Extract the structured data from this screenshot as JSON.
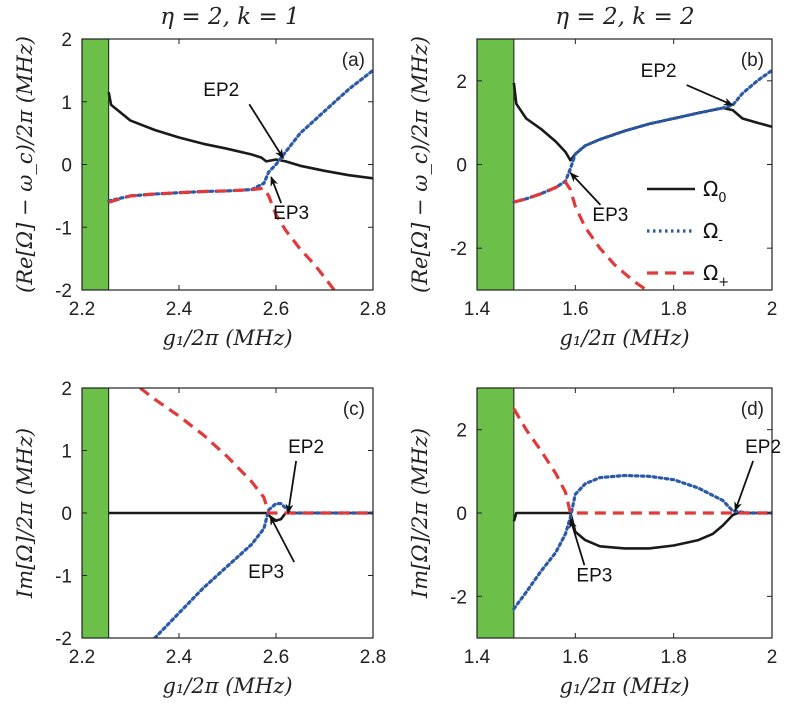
{
  "colors": {
    "omega0": "#1a1a1a",
    "omega_minus": "#2c5aa8",
    "omega_plus": "#e03a3a",
    "shade": "#6cc04a",
    "shade_edge": "#1a1a1a",
    "axis": "#222222"
  },
  "column_titles": [
    "η = 2, k = 1",
    "η = 2, k = 2"
  ],
  "legend": {
    "placement": "right-middle of panel (b)",
    "entries": [
      {
        "symbol": "Ω",
        "sub": "0",
        "series": "omega0"
      },
      {
        "symbol": "Ω",
        "sub": "-",
        "series": "omega_minus"
      },
      {
        "symbol": "Ω",
        "sub": "+",
        "series": "omega_plus"
      }
    ]
  },
  "chart_data": [
    {
      "id": "a",
      "type": "line",
      "panel_label": "(a)",
      "title": "η = 2, k = 1",
      "xlabel": "g₁/2π (MHz)",
      "ylabel": "(Re[Ω] − ω_c)/2π (MHz)",
      "xlim": [
        2.2,
        2.8
      ],
      "ylim": [
        -2,
        2
      ],
      "xticks": [
        2.2,
        2.4,
        2.6,
        2.8
      ],
      "yticks": [
        -2,
        -1,
        0,
        1,
        2
      ],
      "xtick_labels": [
        "2.2",
        "2.4",
        "2.6",
        "2.8"
      ],
      "ytick_labels": [
        "-2",
        "-1",
        "0",
        "1",
        "2"
      ],
      "shaded_x": [
        2.2,
        2.255
      ],
      "series": [
        {
          "name": "Ω0",
          "key": "omega0",
          "x": [
            2.255,
            2.26,
            2.3,
            2.35,
            2.4,
            2.45,
            2.5,
            2.55,
            2.57,
            2.58,
            2.6,
            2.62,
            2.65,
            2.7,
            2.75,
            2.8
          ],
          "y": [
            1.15,
            0.95,
            0.7,
            0.55,
            0.43,
            0.33,
            0.25,
            0.16,
            0.11,
            0.05,
            0.08,
            0.05,
            -0.02,
            -0.1,
            -0.17,
            -0.22
          ]
        },
        {
          "name": "Ω-",
          "key": "omega_minus",
          "x": [
            2.255,
            2.3,
            2.35,
            2.4,
            2.45,
            2.5,
            2.55,
            2.575,
            2.585,
            2.6,
            2.62,
            2.65,
            2.7,
            2.75,
            2.8
          ],
          "y": [
            -0.58,
            -0.5,
            -0.47,
            -0.45,
            -0.43,
            -0.42,
            -0.4,
            -0.3,
            -0.12,
            0.0,
            0.2,
            0.5,
            0.85,
            1.2,
            1.5
          ]
        },
        {
          "name": "Ω+",
          "key": "omega_plus",
          "x": [
            2.255,
            2.3,
            2.35,
            2.4,
            2.45,
            2.5,
            2.55,
            2.575,
            2.585,
            2.6,
            2.62,
            2.65,
            2.68,
            2.7,
            2.72
          ],
          "y": [
            -0.6,
            -0.5,
            -0.47,
            -0.45,
            -0.43,
            -0.42,
            -0.4,
            -0.38,
            -0.5,
            -0.8,
            -1.05,
            -1.35,
            -1.6,
            -1.8,
            -2.0
          ]
        }
      ],
      "annotations": [
        {
          "text": "EP2",
          "x": 2.615,
          "y": 0.1,
          "dx": -60,
          "dy": -62
        },
        {
          "text": "EP3",
          "x": 2.59,
          "y": -0.2,
          "dx": 8,
          "dy": 42
        }
      ]
    },
    {
      "id": "b",
      "type": "line",
      "panel_label": "(b)",
      "title": "η = 2, k = 2",
      "xlabel": "g₁/2π (MHz)",
      "ylabel": "(Re[Ω] − ω_c)/2π (MHz)",
      "xlim": [
        1.4,
        2.0
      ],
      "ylim": [
        -3,
        3
      ],
      "xticks": [
        1.4,
        1.6,
        1.8,
        2.0
      ],
      "yticks": [
        -2,
        0,
        2
      ],
      "xtick_labels": [
        "1.4",
        "1.6",
        "1.8",
        "2"
      ],
      "ytick_labels": [
        "-2",
        "0",
        "2"
      ],
      "shaded_x": [
        1.4,
        1.475
      ],
      "series": [
        {
          "name": "Ω0",
          "key": "omega0",
          "x": [
            1.475,
            1.48,
            1.5,
            1.53,
            1.56,
            1.58,
            1.59,
            1.6,
            1.62,
            1.65,
            1.7,
            1.75,
            1.8,
            1.85,
            1.9,
            1.92,
            1.94,
            1.97,
            2.0
          ],
          "y": [
            1.95,
            1.45,
            1.1,
            0.85,
            0.55,
            0.3,
            0.1,
            0.25,
            0.45,
            0.6,
            0.8,
            0.97,
            1.1,
            1.23,
            1.35,
            1.3,
            1.1,
            1.0,
            0.9
          ]
        },
        {
          "name": "Ω-",
          "key": "omega_minus",
          "x": [
            1.475,
            1.5,
            1.53,
            1.56,
            1.58,
            1.59,
            1.6,
            1.62,
            1.65,
            1.7,
            1.75,
            1.8,
            1.85,
            1.9,
            1.92,
            1.94,
            1.97,
            2.0
          ],
          "y": [
            -0.9,
            -0.82,
            -0.7,
            -0.55,
            -0.4,
            -0.1,
            0.25,
            0.45,
            0.6,
            0.8,
            0.97,
            1.1,
            1.23,
            1.35,
            1.42,
            1.7,
            2.0,
            2.25
          ]
        },
        {
          "name": "Ω+",
          "key": "omega_plus",
          "x": [
            1.475,
            1.5,
            1.53,
            1.56,
            1.58,
            1.59,
            1.6,
            1.62,
            1.65,
            1.68,
            1.7,
            1.72,
            1.745
          ],
          "y": [
            -0.9,
            -0.82,
            -0.7,
            -0.55,
            -0.42,
            -0.6,
            -1.0,
            -1.5,
            -2.0,
            -2.4,
            -2.6,
            -2.8,
            -3.0
          ]
        }
      ],
      "annotations": [
        {
          "text": "EP2",
          "x": 1.92,
          "y": 1.42,
          "dx": -72,
          "dy": -28
        },
        {
          "text": "EP3",
          "x": 1.59,
          "y": -0.2,
          "dx": 28,
          "dy": 48
        }
      ]
    },
    {
      "id": "c",
      "type": "line",
      "panel_label": "(c)",
      "xlabel": "g₁/2π (MHz)",
      "ylabel": "Im[Ω]/2π (MHz)",
      "xlim": [
        2.2,
        2.8
      ],
      "ylim": [
        -2,
        2
      ],
      "xticks": [
        2.2,
        2.4,
        2.6,
        2.8
      ],
      "yticks": [
        -2,
        -1,
        0,
        1,
        2
      ],
      "xtick_labels": [
        "2.2",
        "2.4",
        "2.6",
        "2.8"
      ],
      "ytick_labels": [
        "-2",
        "-1",
        "0",
        "1",
        "2"
      ],
      "shaded_x": [
        2.2,
        2.255
      ],
      "series": [
        {
          "name": "Ω0",
          "key": "omega0",
          "x": [
            2.255,
            2.58,
            2.59,
            2.6,
            2.61,
            2.62,
            2.65,
            2.8
          ],
          "y": [
            0.0,
            0.0,
            -0.07,
            -0.12,
            -0.1,
            0.0,
            0.0,
            0.0
          ]
        },
        {
          "name": "Ω-",
          "key": "omega_minus",
          "x": [
            2.35,
            2.4,
            2.45,
            2.5,
            2.55,
            2.575,
            2.585,
            2.6,
            2.61,
            2.62,
            2.63,
            2.65,
            2.7,
            2.75,
            2.8
          ],
          "y": [
            -2.0,
            -1.6,
            -1.2,
            -0.85,
            -0.5,
            -0.25,
            0.05,
            0.15,
            0.15,
            0.08,
            0.0,
            0.0,
            0.0,
            0.0,
            0.0
          ]
        },
        {
          "name": "Ω+",
          "key": "omega_plus",
          "x": [
            2.32,
            2.35,
            2.4,
            2.45,
            2.5,
            2.55,
            2.575,
            2.585,
            2.6,
            2.65,
            2.7,
            2.75,
            2.8
          ],
          "y": [
            2.0,
            1.82,
            1.55,
            1.25,
            0.9,
            0.5,
            0.25,
            0.0,
            0.0,
            0.0,
            0.0,
            0.0,
            0.0
          ]
        }
      ],
      "annotations": [
        {
          "text": "EP2",
          "x": 2.625,
          "y": 0.0,
          "dx": 6,
          "dy": -60
        },
        {
          "text": "EP3",
          "x": 2.588,
          "y": -0.05,
          "dx": -2,
          "dy": 62
        }
      ]
    },
    {
      "id": "d",
      "type": "line",
      "panel_label": "(d)",
      "xlabel": "g₁/2π (MHz)",
      "ylabel": "Im[Ω]/2π (MHz)",
      "xlim": [
        1.4,
        2.0
      ],
      "ylim": [
        -3,
        3
      ],
      "xticks": [
        1.4,
        1.6,
        1.8,
        2.0
      ],
      "yticks": [
        -2,
        0,
        2
      ],
      "xtick_labels": [
        "1.4",
        "1.6",
        "1.8",
        "2"
      ],
      "ytick_labels": [
        "-2",
        "0",
        "2"
      ],
      "shaded_x": [
        1.4,
        1.475
      ],
      "series": [
        {
          "name": "Ω0",
          "key": "omega0",
          "x": [
            1.475,
            1.48,
            1.485,
            1.59,
            1.6,
            1.62,
            1.65,
            1.7,
            1.75,
            1.8,
            1.85,
            1.88,
            1.9,
            1.92,
            1.93,
            2.0
          ],
          "y": [
            -0.2,
            0.0,
            0.0,
            0.0,
            -0.45,
            -0.65,
            -0.8,
            -0.85,
            -0.85,
            -0.78,
            -0.65,
            -0.5,
            -0.3,
            -0.05,
            0.0,
            0.0
          ]
        },
        {
          "name": "Ω-",
          "key": "omega_minus",
          "x": [
            1.475,
            1.5,
            1.53,
            1.56,
            1.58,
            1.59,
            1.6,
            1.62,
            1.65,
            1.7,
            1.75,
            1.8,
            1.85,
            1.9,
            1.92,
            1.95,
            2.0
          ],
          "y": [
            -2.3,
            -1.9,
            -1.4,
            -0.95,
            -0.5,
            -0.1,
            0.45,
            0.7,
            0.85,
            0.9,
            0.88,
            0.8,
            0.6,
            0.3,
            0.05,
            0.0,
            0.0
          ]
        },
        {
          "name": "Ω+",
          "key": "omega_plus",
          "x": [
            1.475,
            1.5,
            1.53,
            1.56,
            1.58,
            1.59,
            1.6,
            1.65,
            1.7,
            1.8,
            1.9,
            2.0
          ],
          "y": [
            2.5,
            2.0,
            1.5,
            0.95,
            0.5,
            0.0,
            0.0,
            0.0,
            0.0,
            0.0,
            0.0,
            0.0
          ]
        }
      ],
      "annotations": [
        {
          "text": "EP2",
          "x": 1.925,
          "y": 0.05,
          "dx": 16,
          "dy": -58
        },
        {
          "text": "EP3",
          "x": 1.59,
          "y": -0.15,
          "dx": 12,
          "dy": 62
        }
      ]
    }
  ]
}
